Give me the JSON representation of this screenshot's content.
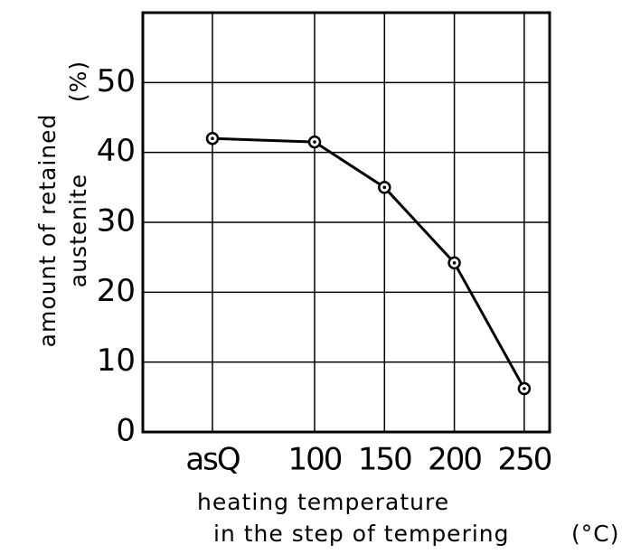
{
  "chart_data": {
    "type": "line",
    "categories": [
      "asQ",
      "100",
      "150",
      "200",
      "250"
    ],
    "series": [
      {
        "name": null,
        "color": "#000000",
        "values": [
          42,
          41.5,
          35,
          24.2,
          6.2
        ]
      }
    ],
    "ylim": [
      0,
      60
    ],
    "yticks": [
      0,
      10,
      20,
      30,
      40,
      50
    ],
    "grid": true,
    "ylabel": [
      "amount of retained",
      "austenite"
    ],
    "yunit": "(%)",
    "xlabel": [
      "heating temperature",
      "in the step of tempering"
    ],
    "xunit": "(°C)"
  }
}
